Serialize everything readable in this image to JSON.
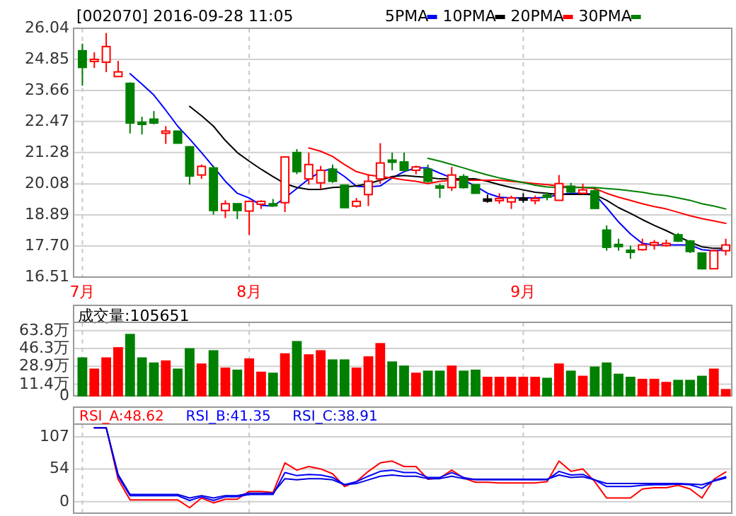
{
  "chart_data": [
    {
      "type": "candlestick",
      "title": "[002070] 2016-09-28 11:05",
      "categories": [
        "7月",
        null,
        null,
        null,
        null,
        null,
        null,
        null,
        null,
        null,
        null,
        null,
        null,
        null,
        "8月",
        null,
        null,
        null,
        null,
        null,
        null,
        null,
        null,
        null,
        null,
        null,
        null,
        null,
        null,
        null,
        null,
        null,
        null,
        null,
        null,
        null,
        null,
        "9月",
        null,
        null,
        null,
        null,
        null,
        null,
        null,
        null,
        null,
        null,
        null,
        null,
        null,
        null,
        null,
        null,
        null
      ],
      "ohlc": [
        [
          25.18,
          25.45,
          23.84,
          24.54
        ],
        [
          24.83,
          25.12,
          24.52,
          24.85
        ],
        [
          24.74,
          25.86,
          24.36,
          25.34
        ],
        [
          24.19,
          24.79,
          24.19,
          24.37
        ],
        [
          23.93,
          23.97,
          22.01,
          22.41
        ],
        [
          22.44,
          22.65,
          21.97,
          22.36
        ],
        [
          22.56,
          22.87,
          22.36,
          22.41
        ],
        [
          22.05,
          22.29,
          21.61,
          22.1
        ],
        [
          22.1,
          22.1,
          21.64,
          21.64
        ],
        [
          21.5,
          21.53,
          20.05,
          20.38
        ],
        [
          20.42,
          20.82,
          20.27,
          20.75
        ],
        [
          20.69,
          20.78,
          18.9,
          19.06
        ],
        [
          19.06,
          19.45,
          18.77,
          19.32
        ],
        [
          19.32,
          19.32,
          18.73,
          19.06
        ],
        [
          19.04,
          19.41,
          18.13,
          19.41
        ],
        [
          19.3,
          19.45,
          19.12,
          19.41
        ],
        [
          19.32,
          19.5,
          19.21,
          19.25
        ],
        [
          19.36,
          21.11,
          19,
          21.11
        ],
        [
          21.28,
          21.41,
          20.45,
          20.55
        ],
        [
          20.27,
          21.28,
          20.05,
          20.82
        ],
        [
          20.12,
          20.77,
          19.87,
          20.6
        ],
        [
          20.64,
          20.82,
          20.12,
          20.18
        ],
        [
          20.03,
          20.03,
          19.17,
          19.17
        ],
        [
          19.23,
          19.54,
          19.17,
          19.41
        ],
        [
          19.67,
          20.45,
          19.23,
          20.18
        ],
        [
          20.27,
          21.64,
          20.09,
          20.88
        ],
        [
          20.99,
          21.28,
          20.6,
          20.95
        ],
        [
          20.92,
          21.28,
          20.55,
          20.6
        ],
        [
          20.6,
          20.78,
          20.45,
          20.73
        ],
        [
          20.64,
          20.82,
          20.12,
          20.18
        ],
        [
          20,
          20.09,
          19.54,
          19.95
        ],
        [
          19.94,
          20.73,
          19.81,
          20.42
        ],
        [
          20.36,
          20.45,
          19.9,
          19.94
        ],
        [
          20.05,
          20.05,
          19.72,
          19.72
        ],
        [
          19.5,
          19.67,
          19.36,
          19.5
        ],
        [
          19.5,
          19.72,
          19.32,
          19.52
        ],
        [
          19.39,
          19.63,
          19.12,
          19.54
        ],
        [
          19.54,
          19.72,
          19.36,
          19.54
        ],
        [
          19.48,
          19.63,
          19.3,
          19.52
        ],
        [
          19.65,
          19.76,
          19.45,
          19.61
        ],
        [
          19.45,
          20.42,
          19.45,
          20.09
        ],
        [
          19.99,
          20.12,
          19.72,
          19.77
        ],
        [
          19.72,
          20.09,
          19.68,
          19.85
        ],
        [
          19.81,
          19.94,
          19.14,
          19.14
        ],
        [
          18.31,
          18.49,
          17.52,
          17.65
        ],
        [
          17.76,
          17.98,
          17.52,
          17.72
        ],
        [
          17.54,
          17.71,
          17.21,
          17.52
        ],
        [
          17.56,
          17.98,
          17.52,
          17.74
        ],
        [
          17.74,
          17.93,
          17.56,
          17.83
        ],
        [
          17.77,
          17.94,
          17.67,
          17.8
        ],
        [
          18.13,
          18.2,
          17.85,
          17.89
        ],
        [
          17.89,
          17.93,
          17.43,
          17.49
        ],
        [
          17.43,
          17.43,
          16.8,
          16.83
        ],
        [
          16.83,
          17.56,
          16.83,
          17.52
        ],
        [
          17.52,
          17.98,
          17.34,
          17.74
        ]
      ],
      "colors": [
        "#008000",
        "#ff0000",
        "#ff0000",
        "#ff0000",
        "#008000",
        "#008000",
        "#008000",
        "#ff0000",
        "#008000",
        "#008000",
        "#ff0000",
        "#008000",
        "#ff0000",
        "#008000",
        "#ff0000",
        "#ff0000",
        "#008000",
        "#ff0000",
        "#008000",
        "#ff0000",
        "#ff0000",
        "#008000",
        "#008000",
        "#ff0000",
        "#ff0000",
        "#ff0000",
        "#008000",
        "#008000",
        "#ff0000",
        "#008000",
        "#008000",
        "#ff0000",
        "#008000",
        "#008000",
        "#000000",
        "#ff0000",
        "#ff0000",
        "#000000",
        "#ff0000",
        "#008000",
        "#ff0000",
        "#008000",
        "#ff0000",
        "#008000",
        "#008000",
        "#008000",
        "#008000",
        "#ff0000",
        "#ff0000",
        "#ff0000",
        "#008000",
        "#008000",
        "#008000",
        "#ff0000",
        "#ff0000"
      ],
      "series": [
        {
          "name": "5PMA",
          "type": "line",
          "color": "#0000ff",
          "values": [
            null,
            null,
            null,
            null,
            24.3,
            23.9,
            23.48,
            22.9,
            22.29,
            21.8,
            21.28,
            20.73,
            20.18,
            19.72,
            19.54,
            19.26,
            19.23,
            19.54,
            19.9,
            20.27,
            20.55,
            20.67,
            20.36,
            19.99,
            19.96,
            20,
            20.31,
            20.55,
            20.69,
            20.69,
            20.49,
            20.31,
            20.22,
            19.99,
            19.72,
            19.57,
            19.54,
            19.54,
            19.54,
            19.57,
            19.67,
            19.72,
            19.72,
            19.68,
            19.17,
            18.62,
            18.16,
            17.8,
            17.74,
            17.74,
            17.74,
            17.74,
            17.56,
            17.52,
            17.56
          ]
        },
        {
          "name": "10PMA",
          "type": "line",
          "color": "#000000",
          "values": [
            null,
            null,
            null,
            null,
            null,
            null,
            null,
            null,
            null,
            23.05,
            22.69,
            22.29,
            21.74,
            21.28,
            20.95,
            20.64,
            20.36,
            20.09,
            19.94,
            19.87,
            19.87,
            19.94,
            19.96,
            20,
            20.09,
            20.22,
            20.36,
            20.4,
            20.36,
            20.33,
            20.27,
            20.27,
            20.27,
            20.27,
            20.18,
            20.05,
            19.94,
            19.85,
            19.76,
            19.72,
            19.68,
            19.68,
            19.68,
            19.67,
            19.45,
            19.17,
            18.95,
            18.71,
            18.49,
            18.29,
            18.07,
            17.85,
            17.67,
            17.61,
            17.61
          ]
        },
        {
          "name": "20PMA",
          "type": "line",
          "color": "#ff0000",
          "values": [
            null,
            null,
            null,
            null,
            null,
            null,
            null,
            null,
            null,
            null,
            null,
            null,
            null,
            null,
            null,
            null,
            null,
            null,
            null,
            21.46,
            21.33,
            21.13,
            20.82,
            20.55,
            20.42,
            20.36,
            20.31,
            20.23,
            20.18,
            20.09,
            20.18,
            20.22,
            20.22,
            20.22,
            20.22,
            20.22,
            20.18,
            20.14,
            20.09,
            20.05,
            20,
            19.96,
            19.94,
            19.9,
            19.72,
            19.57,
            19.45,
            19.32,
            19.21,
            19.12,
            18.99,
            18.86,
            18.75,
            18.66,
            18.57
          ]
        },
        {
          "name": "30PMA",
          "type": "line",
          "color": "#008000",
          "values": [
            null,
            null,
            null,
            null,
            null,
            null,
            null,
            null,
            null,
            null,
            null,
            null,
            null,
            null,
            null,
            null,
            null,
            null,
            null,
            null,
            null,
            null,
            null,
            null,
            null,
            null,
            null,
            null,
            null,
            21.06,
            20.95,
            20.82,
            20.69,
            20.55,
            20.42,
            20.31,
            20.22,
            20.13,
            20.03,
            19.96,
            19.94,
            19.94,
            19.94,
            19.94,
            19.9,
            19.87,
            19.81,
            19.76,
            19.68,
            19.63,
            19.54,
            19.45,
            19.32,
            19.23,
            19.12
          ]
        }
      ],
      "ylim": [
        16.51,
        26.04
      ],
      "yticks": [
        16.51,
        {
          "value": 17.7,
          "label": "17.70"
        },
        18.89,
        20.08,
        21.28,
        22.47,
        23.66,
        24.85,
        26.04
      ],
      "grid": true,
      "legend": "top right"
    },
    {
      "type": "bar",
      "title": "成交量:105651",
      "categories": [
        null,
        null,
        null,
        null,
        null,
        null,
        null,
        null,
        null,
        null,
        null,
        null,
        null,
        null,
        null,
        null,
        null,
        null,
        null,
        null,
        null,
        null,
        null,
        null,
        null,
        null,
        null,
        null,
        null,
        null,
        null,
        null,
        null,
        null,
        null,
        null,
        null,
        null,
        null,
        null,
        null,
        null,
        null,
        null,
        null,
        null,
        null,
        null,
        null,
        null,
        null,
        null,
        null,
        null,
        null
      ],
      "values": [
        37,
        26,
        37,
        47,
        60,
        37,
        32,
        34,
        26,
        46,
        31,
        44,
        27,
        25,
        36,
        23,
        22,
        41,
        53,
        40,
        44,
        35,
        35,
        27,
        38,
        51,
        33,
        29,
        22,
        24,
        24,
        29,
        24,
        25,
        18,
        18,
        18,
        18,
        18,
        17,
        31,
        24,
        19,
        28,
        32,
        21,
        18,
        16,
        16,
        13,
        15,
        15,
        19,
        26,
        6
      ],
      "colors": [
        "#008000",
        "#ff0000",
        "#ff0000",
        "#ff0000",
        "#008000",
        "#008000",
        "#008000",
        "#ff0000",
        "#008000",
        "#008000",
        "#ff0000",
        "#008000",
        "#ff0000",
        "#008000",
        "#ff0000",
        "#ff0000",
        "#008000",
        "#ff0000",
        "#008000",
        "#ff0000",
        "#ff0000",
        "#008000",
        "#008000",
        "#ff0000",
        "#ff0000",
        "#ff0000",
        "#008000",
        "#008000",
        "#ff0000",
        "#008000",
        "#008000",
        "#ff0000",
        "#008000",
        "#008000",
        "#ff0000",
        "#ff0000",
        "#ff0000",
        "#ff0000",
        "#ff0000",
        "#008000",
        "#ff0000",
        "#008000",
        "#ff0000",
        "#008000",
        "#008000",
        "#008000",
        "#008000",
        "#ff0000",
        "#ff0000",
        "#ff0000",
        "#008000",
        "#008000",
        "#008000",
        "#ff0000",
        "#ff0000"
      ],
      "ylim": [
        0,
        72
      ],
      "yticks": [
        0,
        {
          "value": 11.4,
          "label": "11.4万"
        },
        {
          "value": 28.9,
          "label": "28.9万"
        },
        {
          "value": 46.3,
          "label": "46.3万"
        },
        {
          "value": 63.8,
          "label": "63.8万"
        }
      ],
      "grid": true,
      "tick_labels": "y"
    },
    {
      "type": "line",
      "categories": [
        null,
        null,
        null,
        null,
        null,
        null,
        null,
        null,
        null,
        null,
        null,
        null,
        null,
        null,
        null,
        null,
        null,
        null,
        null,
        null,
        null,
        null,
        null,
        null,
        null,
        null,
        null,
        null,
        null,
        null,
        null,
        null,
        null,
        null,
        null,
        null,
        null,
        null,
        null,
        null,
        null,
        null,
        null,
        null,
        null,
        null,
        null,
        null,
        null,
        null,
        null,
        null,
        null,
        null,
        null
      ],
      "series": [
        {
          "name": "RSI_A:48.62",
          "color": "#ff0000",
          "values": [
            null,
            122,
            122,
            37,
            3,
            3,
            3,
            3,
            3,
            -10,
            6,
            -2,
            4,
            4,
            17,
            17,
            15,
            64,
            52,
            58,
            54,
            46,
            25,
            33,
            50,
            64,
            67,
            58,
            58,
            37,
            39,
            52,
            39,
            32,
            32,
            31,
            31,
            31,
            31,
            33,
            67,
            50,
            54,
            33,
            6,
            6,
            6,
            21,
            23,
            23,
            27,
            21,
            6,
            37,
            49
          ]
        },
        {
          "name": "RSI_B:41.35",
          "color": "#0000ff",
          "values": [
            null,
            122,
            122,
            42,
            10,
            10,
            10,
            10,
            10,
            2,
            8,
            2,
            8,
            8,
            12,
            12,
            12,
            48,
            43,
            45,
            44,
            40,
            28,
            33,
            42,
            50,
            52,
            48,
            48,
            40,
            40,
            48,
            40,
            36,
            36,
            36,
            36,
            36,
            36,
            36,
            50,
            44,
            45,
            36,
            25,
            25,
            25,
            27,
            28,
            28,
            29,
            28,
            22,
            35,
            41
          ]
        },
        {
          "name": "RSI_C:38.91",
          "color": "#0000e0",
          "values": [
            null,
            122,
            122,
            45,
            12,
            12,
            12,
            12,
            12,
            6,
            10,
            6,
            10,
            10,
            14,
            14,
            14,
            38,
            36,
            38,
            38,
            36,
            28,
            30,
            36,
            42,
            44,
            42,
            42,
            38,
            38,
            42,
            38,
            37,
            37,
            37,
            37,
            37,
            37,
            37,
            44,
            40,
            41,
            36,
            30,
            30,
            30,
            30,
            30,
            30,
            30,
            29,
            28,
            34,
            39
          ]
        }
      ],
      "ylim": [
        -19,
        128
      ],
      "yticks": [
        0,
        54,
        107
      ],
      "grid": true,
      "legend": "top left",
      "tick_labels": "y"
    }
  ]
}
